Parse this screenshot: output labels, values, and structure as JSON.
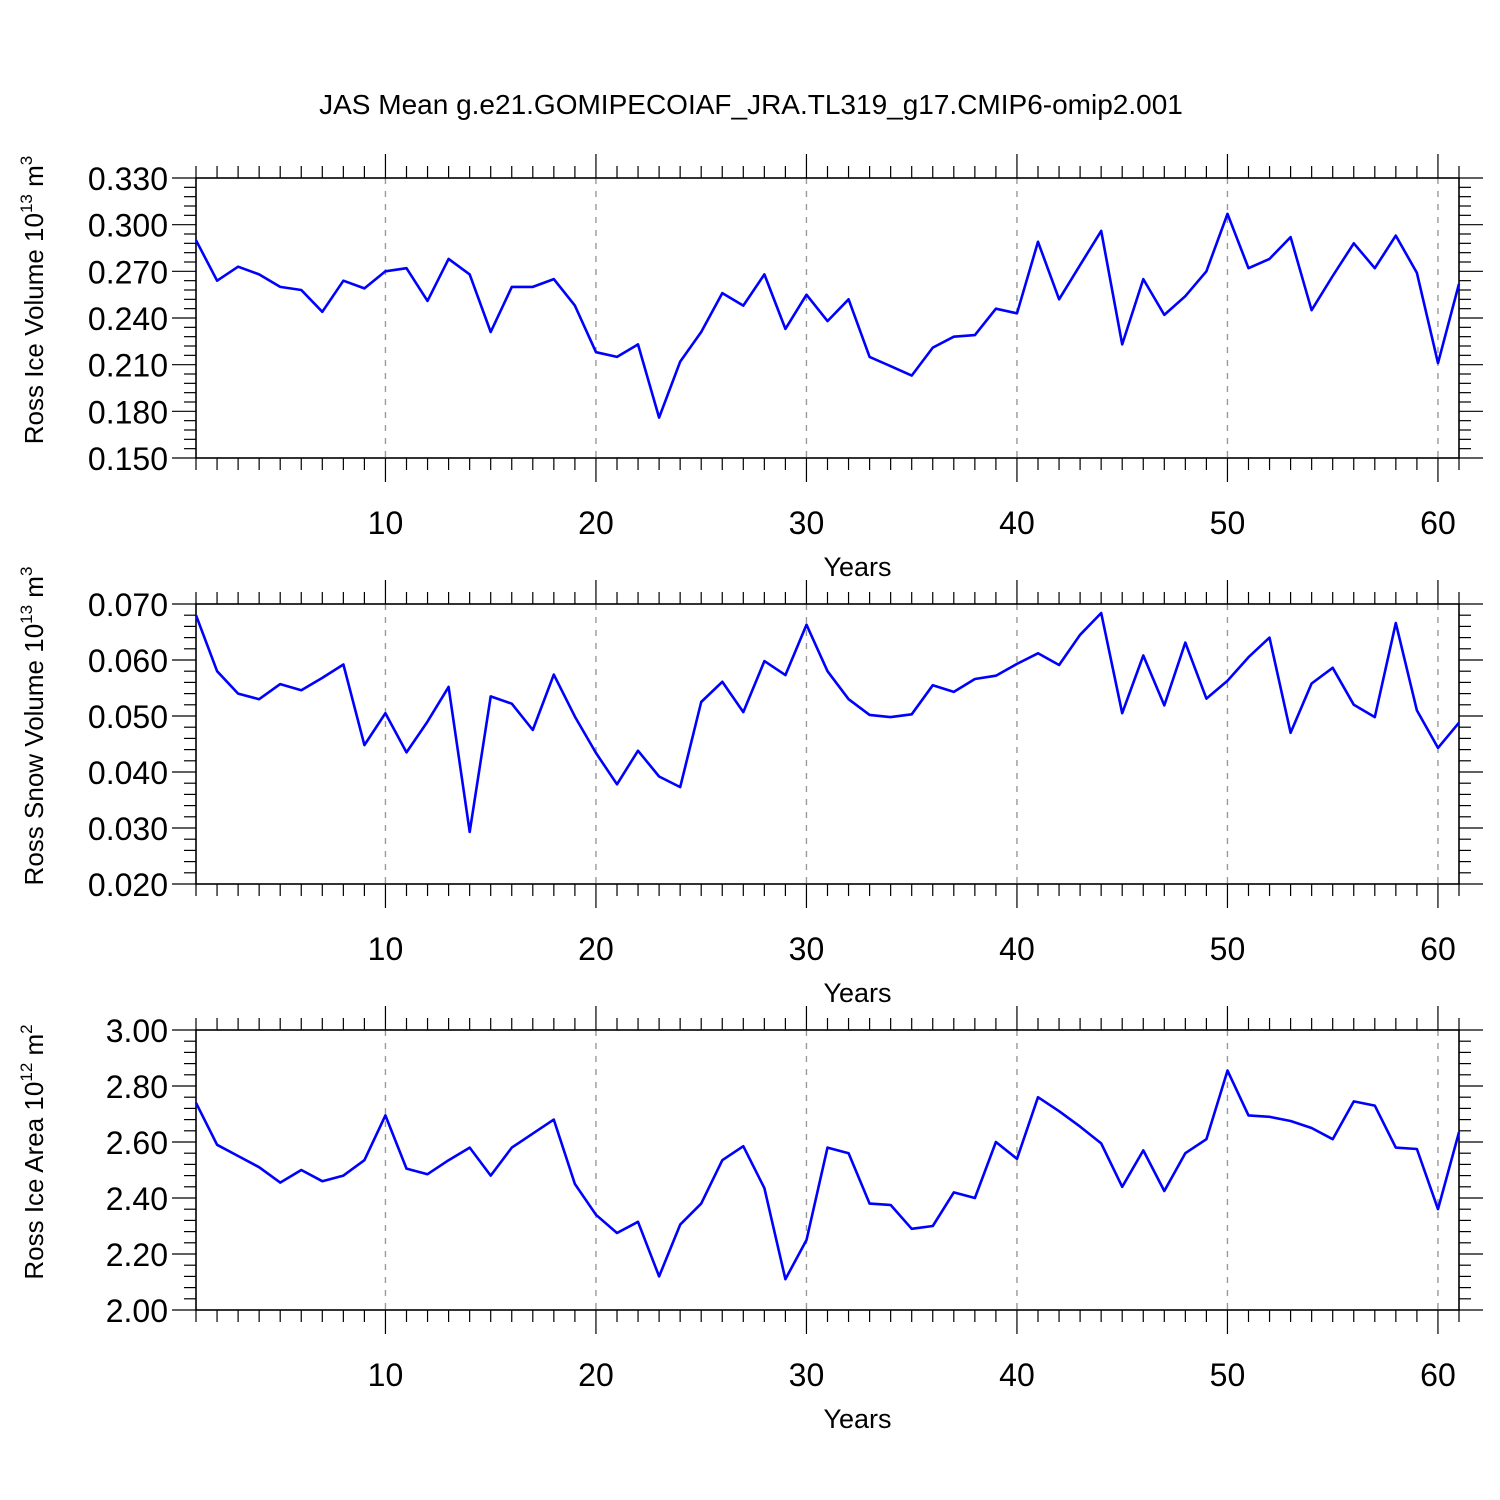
{
  "title": "JAS Mean g.e21.GOMIPECOIAF_JRA.TL319_g17.CMIP6-omip2.001",
  "colors": {
    "line": "#0000ff",
    "axis": "#000000",
    "grid": "#999999"
  },
  "chart_data": [
    {
      "type": "line",
      "name": "ross-ice-volume",
      "ylabel_main": "Ross Ice Volume 10",
      "ylabel_exp": "13",
      "ylabel_tail": " m",
      "ylabel_unit_exp": "3",
      "xlabel": "Years",
      "xlim": [
        1,
        61
      ],
      "ylim": [
        0.15,
        0.33
      ],
      "y_ticks": [
        "0.150",
        "0.180",
        "0.210",
        "0.240",
        "0.270",
        "0.300",
        "0.330"
      ],
      "x_ticks": [
        "10",
        "20",
        "30",
        "40",
        "50",
        "60"
      ],
      "grid": "vertical-dashed",
      "x": [
        1,
        2,
        3,
        4,
        5,
        6,
        7,
        8,
        9,
        10,
        11,
        12,
        13,
        14,
        15,
        16,
        17,
        18,
        19,
        20,
        21,
        22,
        23,
        24,
        25,
        26,
        27,
        28,
        29,
        30,
        31,
        32,
        33,
        34,
        35,
        36,
        37,
        38,
        39,
        40,
        41,
        42,
        43,
        44,
        45,
        46,
        47,
        48,
        49,
        50,
        51,
        52,
        53,
        54,
        55,
        56,
        57,
        58,
        59,
        60,
        61
      ],
      "values": [
        0.29,
        0.264,
        0.273,
        0.268,
        0.26,
        0.258,
        0.244,
        0.264,
        0.259,
        0.27,
        0.272,
        0.251,
        0.278,
        0.268,
        0.231,
        0.26,
        0.26,
        0.265,
        0.248,
        0.218,
        0.215,
        0.223,
        0.176,
        0.212,
        0.231,
        0.256,
        0.248,
        0.268,
        0.233,
        0.255,
        0.238,
        0.252,
        0.215,
        0.209,
        0.203,
        0.221,
        0.228,
        0.229,
        0.246,
        0.243,
        0.289,
        0.252,
        0.274,
        0.296,
        0.223,
        0.265,
        0.242,
        0.254,
        0.27,
        0.307,
        0.272,
        0.278,
        0.292,
        0.245,
        0.267,
        0.288,
        0.272,
        0.293,
        0.269,
        0.211,
        0.262
      ]
    },
    {
      "type": "line",
      "name": "ross-snow-volume",
      "ylabel_main": "Ross Snow Volume 10",
      "ylabel_exp": "13",
      "ylabel_tail": " m",
      "ylabel_unit_exp": "3",
      "xlabel": "Years",
      "xlim": [
        1,
        61
      ],
      "ylim": [
        0.02,
        0.07
      ],
      "y_ticks": [
        "0.020",
        "0.030",
        "0.040",
        "0.050",
        "0.060",
        "0.070"
      ],
      "x_ticks": [
        "10",
        "20",
        "30",
        "40",
        "50",
        "60"
      ],
      "grid": "vertical-dashed",
      "x": [
        1,
        2,
        3,
        4,
        5,
        6,
        7,
        8,
        9,
        10,
        11,
        12,
        13,
        14,
        15,
        16,
        17,
        18,
        19,
        20,
        21,
        22,
        23,
        24,
        25,
        26,
        27,
        28,
        29,
        30,
        31,
        32,
        33,
        34,
        35,
        36,
        37,
        38,
        39,
        40,
        41,
        42,
        43,
        44,
        45,
        46,
        47,
        48,
        49,
        50,
        51,
        52,
        53,
        54,
        55,
        56,
        57,
        58,
        59,
        60,
        61
      ],
      "values": [
        0.068,
        0.058,
        0.054,
        0.053,
        0.0557,
        0.0546,
        0.0568,
        0.0592,
        0.0448,
        0.0505,
        0.0435,
        0.049,
        0.0552,
        0.0293,
        0.0535,
        0.0522,
        0.0475,
        0.0574,
        0.0499,
        0.0434,
        0.0378,
        0.0438,
        0.0392,
        0.0373,
        0.0525,
        0.0561,
        0.0507,
        0.0598,
        0.0573,
        0.0663,
        0.058,
        0.053,
        0.0502,
        0.0498,
        0.0503,
        0.0555,
        0.0543,
        0.0566,
        0.0572,
        0.0593,
        0.0612,
        0.0591,
        0.0645,
        0.0684,
        0.0505,
        0.0608,
        0.0519,
        0.0631,
        0.0531,
        0.0563,
        0.0605,
        0.064,
        0.047,
        0.0558,
        0.0586,
        0.052,
        0.0498,
        0.0666,
        0.051,
        0.0443,
        0.0488
      ]
    },
    {
      "type": "line",
      "name": "ross-ice-area",
      "ylabel_main": "Ross Ice Area 10",
      "ylabel_exp": "12",
      "ylabel_tail": " m",
      "ylabel_unit_exp": "2",
      "xlabel": "Years",
      "xlim": [
        1,
        61
      ],
      "ylim": [
        2.0,
        3.0
      ],
      "y_ticks": [
        "2.00",
        "2.20",
        "2.40",
        "2.60",
        "2.80",
        "3.00"
      ],
      "x_ticks": [
        "10",
        "20",
        "30",
        "40",
        "50",
        "60"
      ],
      "grid": "vertical-dashed",
      "x": [
        1,
        2,
        3,
        4,
        5,
        6,
        7,
        8,
        9,
        10,
        11,
        12,
        13,
        14,
        15,
        16,
        17,
        18,
        19,
        20,
        21,
        22,
        23,
        24,
        25,
        26,
        27,
        28,
        29,
        30,
        31,
        32,
        33,
        34,
        35,
        36,
        37,
        38,
        39,
        40,
        41,
        42,
        43,
        44,
        45,
        46,
        47,
        48,
        49,
        50,
        51,
        52,
        53,
        54,
        55,
        56,
        57,
        58,
        59,
        60,
        61
      ],
      "values": [
        2.74,
        2.59,
        2.55,
        2.51,
        2.455,
        2.5,
        2.46,
        2.48,
        2.535,
        2.695,
        2.505,
        2.485,
        2.535,
        2.58,
        2.48,
        2.58,
        2.63,
        2.68,
        2.45,
        2.34,
        2.275,
        2.315,
        2.12,
        2.305,
        2.38,
        2.535,
        2.585,
        2.435,
        2.11,
        2.25,
        2.58,
        2.56,
        2.38,
        2.375,
        2.29,
        2.3,
        2.42,
        2.4,
        2.6,
        2.54,
        2.76,
        2.71,
        2.655,
        2.595,
        2.44,
        2.57,
        2.425,
        2.56,
        2.61,
        2.855,
        2.695,
        2.69,
        2.675,
        2.65,
        2.61,
        2.745,
        2.73,
        2.58,
        2.575,
        2.36,
        2.635
      ]
    }
  ]
}
